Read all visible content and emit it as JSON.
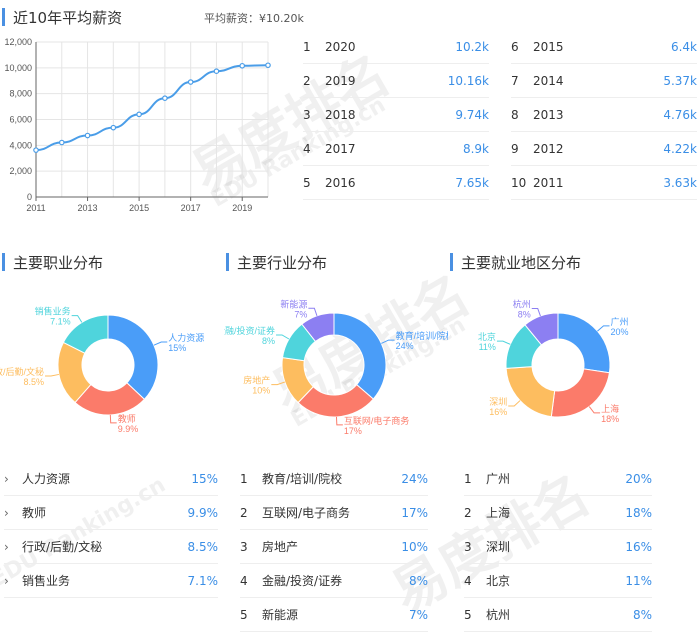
{
  "salary": {
    "title": "近10年平均薪资",
    "avg_label": "平均薪资：¥10.20k",
    "rows_left": [
      {
        "idx": "1",
        "year": "2020",
        "value": "10.2k"
      },
      {
        "idx": "2",
        "year": "2019",
        "value": "10.16k"
      },
      {
        "idx": "3",
        "year": "2018",
        "value": "9.74k"
      },
      {
        "idx": "4",
        "year": "2017",
        "value": "8.9k"
      },
      {
        "idx": "5",
        "year": "2016",
        "value": "7.65k"
      }
    ],
    "rows_right": [
      {
        "idx": "6",
        "year": "2015",
        "value": "6.4k"
      },
      {
        "idx": "7",
        "year": "2014",
        "value": "5.37k"
      },
      {
        "idx": "8",
        "year": "2013",
        "value": "4.76k"
      },
      {
        "idx": "9",
        "year": "2012",
        "value": "4.22k"
      },
      {
        "idx": "10",
        "year": "2011",
        "value": "3.63k"
      }
    ]
  },
  "chart_data": [
    {
      "type": "line",
      "x": [
        2011,
        2012,
        2013,
        2014,
        2015,
        2016,
        2017,
        2018,
        2019,
        2020
      ],
      "series": [
        {
          "values": [
            3630,
            4220,
            4760,
            5370,
            6400,
            7650,
            8900,
            9740,
            10160,
            10200
          ]
        }
      ],
      "xticks": [
        "2011",
        "2013",
        "2015",
        "2017",
        "2019"
      ],
      "yticks": [
        "0",
        "2,000",
        "4,000",
        "6,000",
        "8,000",
        "10,000",
        "12,000"
      ],
      "ylim": [
        0,
        12000
      ],
      "xlim": [
        2011,
        2020
      ],
      "color": "#4a9de8",
      "grid": true
    },
    {
      "type": "pie",
      "title": "主要职业分布",
      "slices": [
        {
          "label": "人力资源",
          "pct": "15%",
          "value": 15,
          "color": "#4a9df8"
        },
        {
          "label": "教师",
          "pct": "9.9%",
          "value": 9.9,
          "color": "#fb7b6a"
        },
        {
          "label": "行政/后勤/文秘",
          "pct": "8.5%",
          "value": 8.5,
          "color": "#fdbd5f"
        },
        {
          "label": "销售业务",
          "pct": "7.1%",
          "value": 7.1,
          "color": "#4fd4dc"
        }
      ]
    },
    {
      "type": "pie",
      "title": "主要行业分布",
      "slices": [
        {
          "label": "教育/培训/院校",
          "pct": "24%",
          "value": 24,
          "color": "#4a9df8"
        },
        {
          "label": "互联网/电子商务",
          "pct": "17%",
          "value": 17,
          "color": "#fb7b6a"
        },
        {
          "label": "房地产",
          "pct": "10%",
          "value": 10,
          "color": "#fdbd5f"
        },
        {
          "label": "金融/投资/证券",
          "pct": "8%",
          "value": 8,
          "color": "#4fd4dc"
        },
        {
          "label": "新能源",
          "pct": "7%",
          "value": 7,
          "color": "#8c7ff2"
        }
      ]
    },
    {
      "type": "pie",
      "title": "主要就业地区分布",
      "slices": [
        {
          "label": "广州",
          "pct": "20%",
          "value": 20,
          "color": "#4a9df8"
        },
        {
          "label": "上海",
          "pct": "18%",
          "value": 18,
          "color": "#fb7b6a"
        },
        {
          "label": "深圳",
          "pct": "16%",
          "value": 16,
          "color": "#fdbd5f"
        },
        {
          "label": "北京",
          "pct": "11%",
          "value": 11,
          "color": "#4fd4dc"
        },
        {
          "label": "杭州",
          "pct": "8%",
          "value": 8,
          "color": "#8c7ff2"
        }
      ]
    }
  ],
  "lists": {
    "occupation": [
      {
        "name": "人力资源",
        "pct": "15%"
      },
      {
        "name": "教师",
        "pct": "9.9%"
      },
      {
        "name": "行政/后勤/文秘",
        "pct": "8.5%"
      },
      {
        "name": "销售业务",
        "pct": "7.1%"
      }
    ],
    "industry": [
      {
        "idx": "1",
        "name": "教育/培训/院校",
        "pct": "24%"
      },
      {
        "idx": "2",
        "name": "互联网/电子商务",
        "pct": "17%"
      },
      {
        "idx": "3",
        "name": "房地产",
        "pct": "10%"
      },
      {
        "idx": "4",
        "name": "金融/投资/证券",
        "pct": "8%"
      },
      {
        "idx": "5",
        "name": "新能源",
        "pct": "7%"
      }
    ],
    "region": [
      {
        "idx": "1",
        "name": "广州",
        "pct": "20%"
      },
      {
        "idx": "2",
        "name": "上海",
        "pct": "18%"
      },
      {
        "idx": "3",
        "name": "深圳",
        "pct": "16%"
      },
      {
        "idx": "4",
        "name": "北京",
        "pct": "11%"
      },
      {
        "idx": "5",
        "name": "杭州",
        "pct": "8%"
      }
    ]
  },
  "watermark": {
    "brand": "易度排名",
    "sub": "EDU Ranking.cn"
  }
}
